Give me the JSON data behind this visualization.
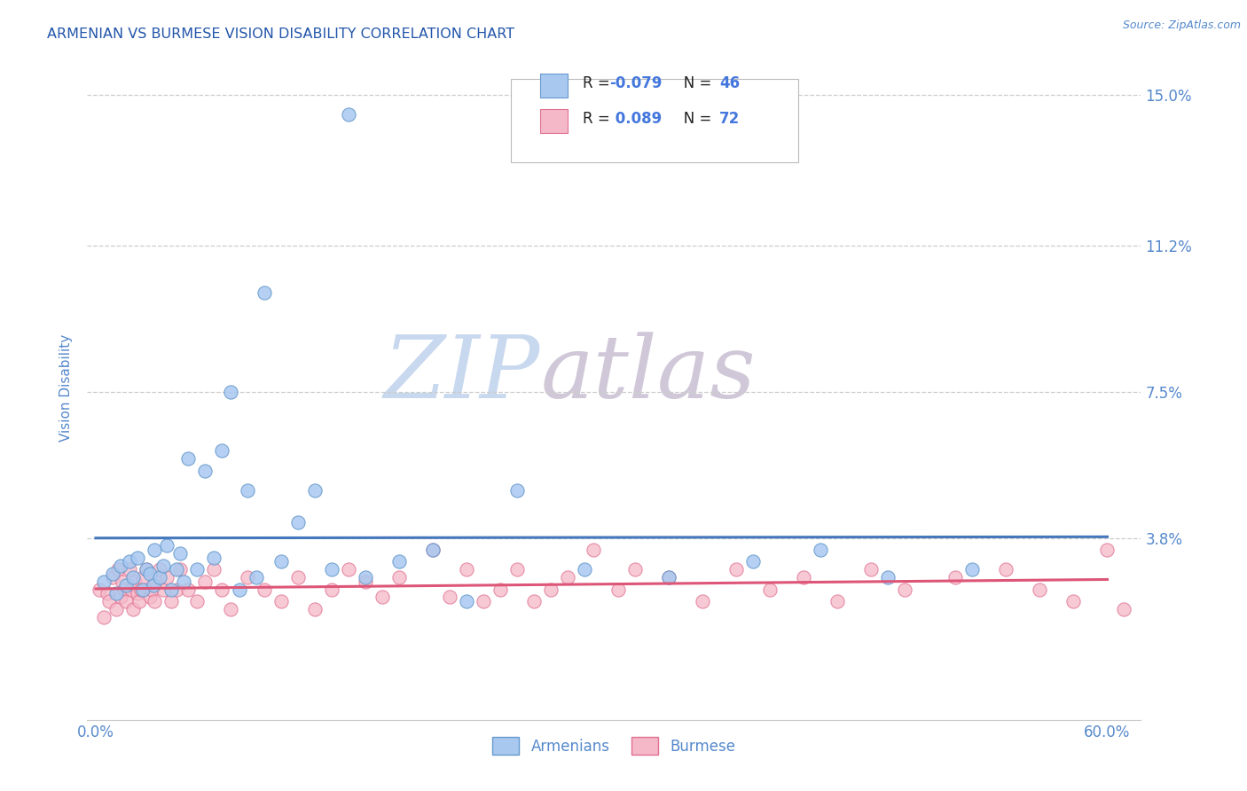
{
  "title": "ARMENIAN VS BURMESE VISION DISABILITY CORRELATION CHART",
  "source": "Source: ZipAtlas.com",
  "ylabel": "Vision Disability",
  "xlim": [
    -0.005,
    0.62
  ],
  "ylim": [
    -0.008,
    0.16
  ],
  "yticks": [
    0.038,
    0.075,
    0.112,
    0.15
  ],
  "ytick_labels": [
    "3.8%",
    "7.5%",
    "11.2%",
    "15.0%"
  ],
  "xticks": [
    0.0,
    0.1,
    0.2,
    0.3,
    0.4,
    0.5,
    0.6
  ],
  "xtick_labels": [
    "0.0%",
    "",
    "",
    "",
    "",
    "",
    "60.0%"
  ],
  "armenian_color": "#a8c8f0",
  "burmese_color": "#f5b8c8",
  "armenian_edge_color": "#6699cc",
  "burmese_edge_color": "#e07090",
  "armenian_line_color": "#4477bb",
  "burmese_line_color": "#dd5577",
  "legend_label_armenian": "Armenians",
  "legend_label_burmese": "Burmese",
  "R_armenian": -0.079,
  "N_armenian": 46,
  "R_burmese": 0.089,
  "N_burmese": 72,
  "title_color": "#2255aa",
  "axis_label_color": "#5588cc",
  "tick_color": "#5588cc",
  "grid_color": "#cccccc",
  "watermark_zip": "ZIP",
  "watermark_atlas": "atlas",
  "armenian_x": [
    0.005,
    0.01,
    0.012,
    0.015,
    0.018,
    0.02,
    0.022,
    0.025,
    0.028,
    0.03,
    0.032,
    0.034,
    0.035,
    0.038,
    0.04,
    0.042,
    0.045,
    0.048,
    0.05,
    0.052,
    0.055,
    0.06,
    0.065,
    0.07,
    0.075,
    0.08,
    0.085,
    0.09,
    0.095,
    0.1,
    0.11,
    0.12,
    0.13,
    0.14,
    0.15,
    0.16,
    0.18,
    0.2,
    0.22,
    0.25,
    0.29,
    0.34,
    0.39,
    0.43,
    0.47,
    0.52
  ],
  "armenian_y": [
    0.027,
    0.029,
    0.024,
    0.031,
    0.026,
    0.032,
    0.028,
    0.033,
    0.025,
    0.03,
    0.029,
    0.026,
    0.035,
    0.028,
    0.031,
    0.036,
    0.025,
    0.03,
    0.034,
    0.027,
    0.058,
    0.03,
    0.055,
    0.033,
    0.06,
    0.075,
    0.025,
    0.05,
    0.028,
    0.1,
    0.032,
    0.042,
    0.05,
    0.03,
    0.145,
    0.028,
    0.032,
    0.035,
    0.022,
    0.05,
    0.03,
    0.028,
    0.032,
    0.035,
    0.028,
    0.03
  ],
  "burmese_x": [
    0.002,
    0.005,
    0.007,
    0.008,
    0.01,
    0.012,
    0.013,
    0.015,
    0.016,
    0.017,
    0.018,
    0.02,
    0.021,
    0.022,
    0.023,
    0.025,
    0.026,
    0.027,
    0.028,
    0.03,
    0.032,
    0.033,
    0.035,
    0.036,
    0.038,
    0.04,
    0.042,
    0.045,
    0.048,
    0.05,
    0.055,
    0.06,
    0.065,
    0.07,
    0.075,
    0.08,
    0.09,
    0.1,
    0.11,
    0.12,
    0.13,
    0.14,
    0.15,
    0.16,
    0.17,
    0.18,
    0.2,
    0.21,
    0.22,
    0.23,
    0.24,
    0.25,
    0.26,
    0.27,
    0.28,
    0.295,
    0.31,
    0.32,
    0.34,
    0.36,
    0.38,
    0.4,
    0.42,
    0.44,
    0.46,
    0.48,
    0.51,
    0.54,
    0.56,
    0.58,
    0.6,
    0.61
  ],
  "burmese_y": [
    0.025,
    0.018,
    0.024,
    0.022,
    0.028,
    0.02,
    0.03,
    0.023,
    0.027,
    0.025,
    0.022,
    0.03,
    0.025,
    0.02,
    0.027,
    0.024,
    0.022,
    0.025,
    0.028,
    0.03,
    0.023,
    0.025,
    0.022,
    0.027,
    0.03,
    0.025,
    0.028,
    0.022,
    0.025,
    0.03,
    0.025,
    0.022,
    0.027,
    0.03,
    0.025,
    0.02,
    0.028,
    0.025,
    0.022,
    0.028,
    0.02,
    0.025,
    0.03,
    0.027,
    0.023,
    0.028,
    0.035,
    0.023,
    0.03,
    0.022,
    0.025,
    0.03,
    0.022,
    0.025,
    0.028,
    0.035,
    0.025,
    0.03,
    0.028,
    0.022,
    0.03,
    0.025,
    0.028,
    0.022,
    0.03,
    0.025,
    0.028,
    0.03,
    0.025,
    0.022,
    0.035,
    0.02
  ]
}
